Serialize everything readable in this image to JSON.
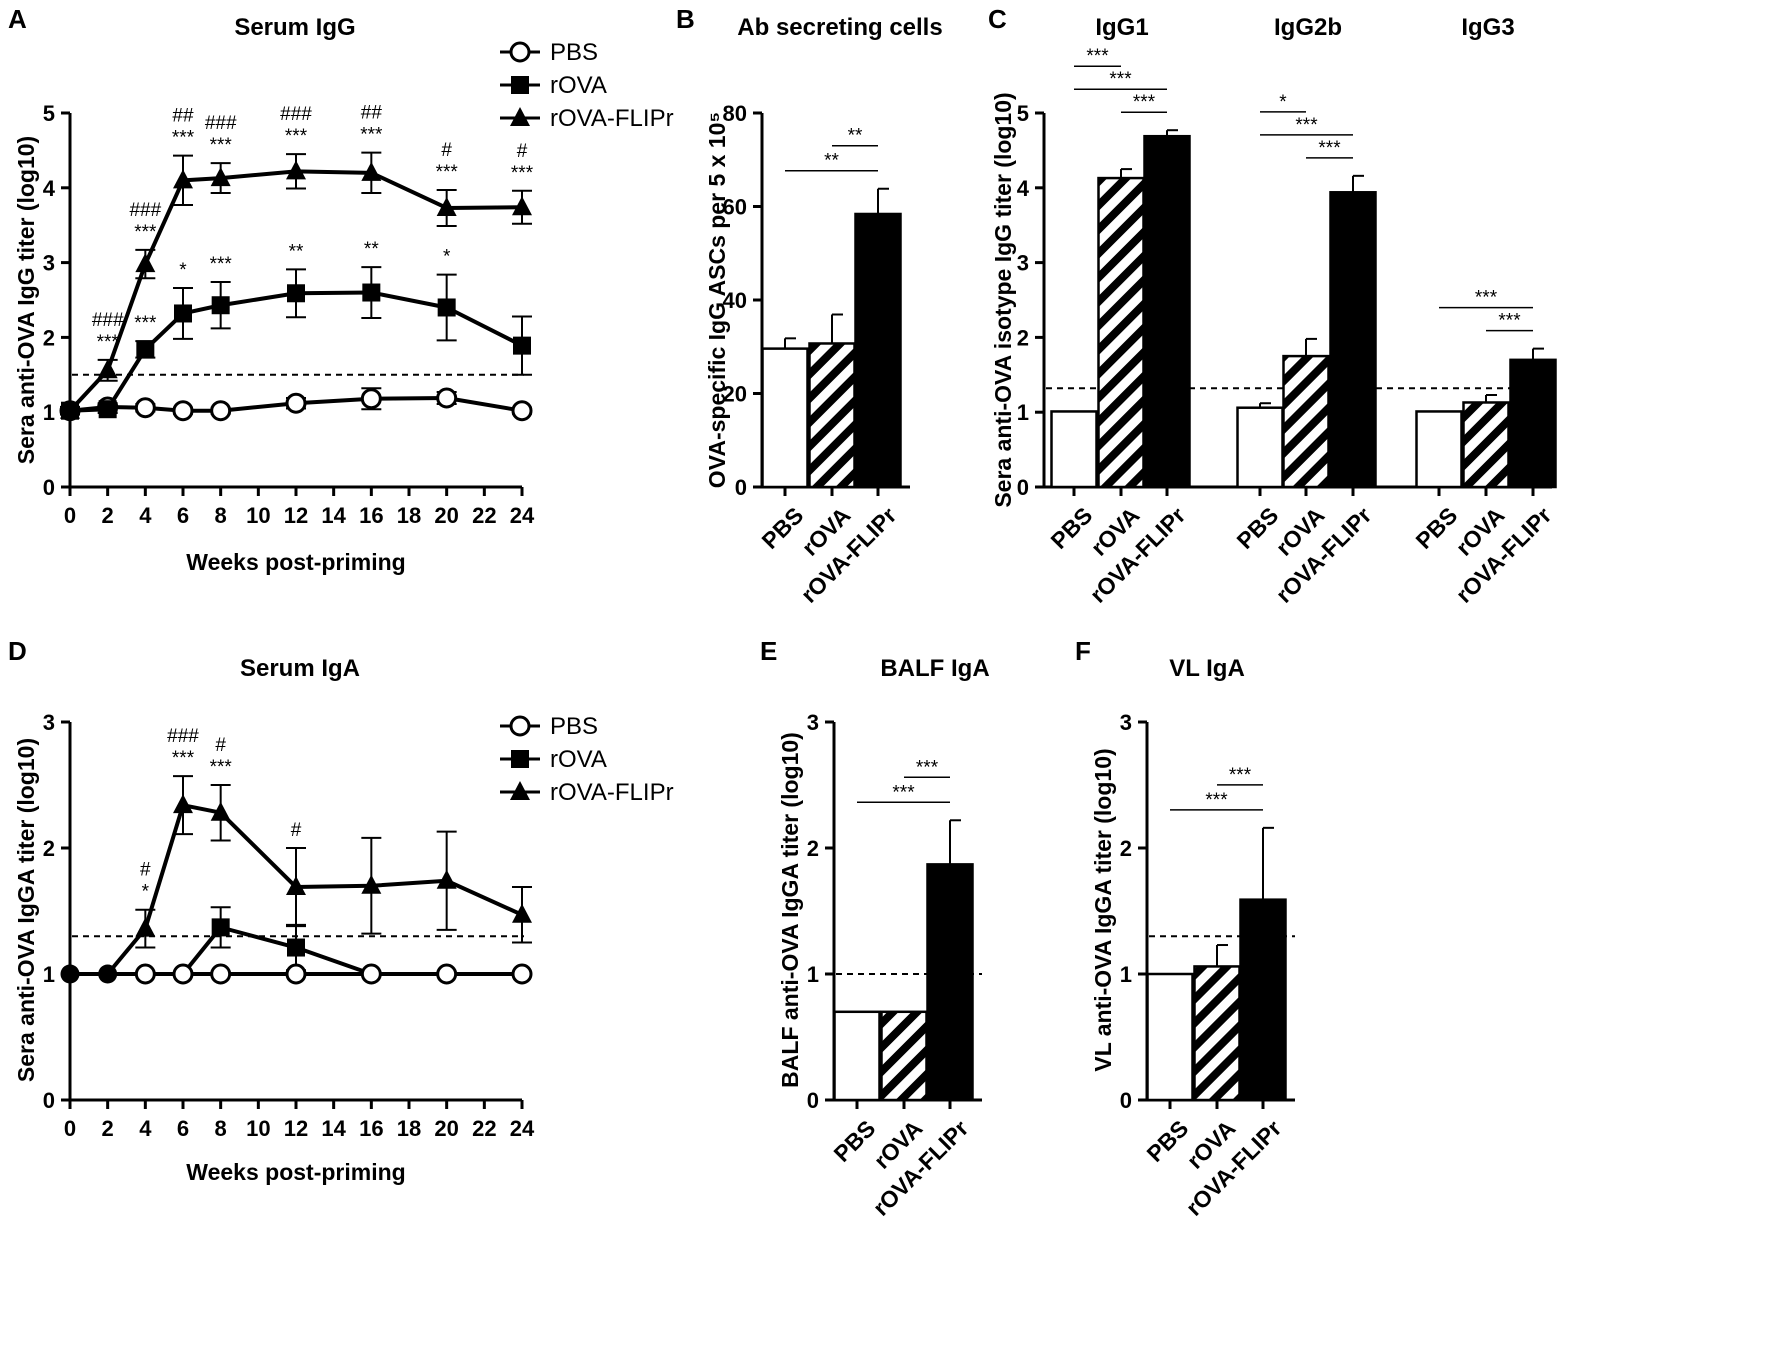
{
  "chart_data": [
    {
      "id": "A",
      "panel_label": "A",
      "type": "line",
      "title": "Serum IgG",
      "xlabel": "Weeks post-priming",
      "ylabel": "Sera anti-OVA IgG titer (log10)",
      "x_ticks": [
        "0",
        "2",
        "4",
        "6",
        "8",
        "10",
        "12",
        "14",
        "16",
        "18",
        "20",
        "22",
        "24"
      ],
      "y_ticks": [
        "0",
        "1",
        "2",
        "3",
        "4",
        "5"
      ],
      "xlim": [
        0,
        24
      ],
      "ylim": [
        0,
        5
      ],
      "threshold": 1.5,
      "legend": [
        "PBS",
        "rOVA",
        "rOVA-FLIPr"
      ],
      "series": [
        {
          "name": "PBS",
          "marker": "open-circle",
          "x": [
            0,
            2,
            4,
            6,
            8,
            12,
            16,
            20,
            24
          ],
          "y": [
            1.02,
            1.07,
            1.06,
            1.02,
            1.02,
            1.12,
            1.18,
            1.19,
            1.02
          ],
          "err": [
            0.05,
            0.05,
            0.05,
            0.04,
            0.04,
            0.07,
            0.14,
            0.08,
            0.04
          ]
        },
        {
          "name": "rOVA",
          "marker": "filled-square",
          "x": [
            0,
            2,
            4,
            6,
            8,
            12,
            16,
            20,
            24
          ],
          "y": [
            1.02,
            1.04,
            1.84,
            2.32,
            2.43,
            2.59,
            2.6,
            2.4,
            1.89
          ],
          "err": [
            0.04,
            0.05,
            0.11,
            0.34,
            0.31,
            0.32,
            0.34,
            0.44,
            0.39
          ]
        },
        {
          "name": "rOVA-FLIPr",
          "marker": "filled-triangle",
          "x": [
            0,
            2,
            4,
            6,
            8,
            12,
            16,
            20,
            24
          ],
          "y": [
            1.02,
            1.56,
            2.98,
            4.1,
            4.13,
            4.22,
            4.2,
            3.73,
            3.74
          ],
          "err": [
            0.04,
            0.14,
            0.19,
            0.33,
            0.2,
            0.23,
            0.27,
            0.24,
            0.22
          ]
        }
      ],
      "annotations": [
        {
          "x": 2,
          "lines": [
            "###",
            "***"
          ]
        },
        {
          "x": 4,
          "lines": [
            "###",
            "***"
          ]
        },
        {
          "x": 4,
          "lines": [
            "***"
          ]
        },
        {
          "x": 6,
          "lines": [
            "##",
            "***"
          ]
        },
        {
          "x": 6,
          "lines": [
            "*"
          ]
        },
        {
          "x": 8,
          "lines": [
            "###",
            "***"
          ]
        },
        {
          "x": 8,
          "lines": [
            "***"
          ]
        },
        {
          "x": 12,
          "lines": [
            "###",
            "***"
          ]
        },
        {
          "x": 12,
          "lines": [
            "**"
          ]
        },
        {
          "x": 16,
          "lines": [
            "##",
            "***"
          ]
        },
        {
          "x": 16,
          "lines": [
            "**"
          ]
        },
        {
          "x": 20,
          "lines": [
            "#",
            "***"
          ]
        },
        {
          "x": 20,
          "lines": [
            "*"
          ]
        },
        {
          "x": 24,
          "lines": [
            "#",
            "***"
          ]
        }
      ]
    },
    {
      "id": "B",
      "panel_label": "B",
      "type": "bar",
      "title": "Ab secreting cells",
      "ylabel": "OVA-specific IgG ASCs per 5 x 10⁵",
      "categories": [
        "PBS",
        "rOVA",
        "rOVA-FLIPr"
      ],
      "values": [
        29.6,
        30.7,
        58.4
      ],
      "err": [
        2.2,
        6.2,
        5.4
      ],
      "y_ticks": [
        "0",
        "20",
        "40",
        "60",
        "80"
      ],
      "ylim": [
        0,
        80
      ],
      "brackets": [
        {
          "from": 1,
          "to": 2,
          "label": "**"
        },
        {
          "from": 0,
          "to": 2,
          "label": "**"
        }
      ]
    },
    {
      "id": "C",
      "panel_label": "C",
      "type": "bar",
      "ylabel": "Sera anti-OVA isotype IgG titer (log10)",
      "y_ticks": [
        "0",
        "1",
        "2",
        "3",
        "4",
        "5"
      ],
      "ylim": [
        0,
        5
      ],
      "threshold": 1.32,
      "groups": [
        {
          "title": "IgG1",
          "categories": [
            "PBS",
            "rOVA",
            "rOVA-FLIPr"
          ],
          "values": [
            1.01,
            4.13,
            4.69
          ],
          "err": [
            0,
            0.12,
            0.08
          ],
          "brackets": [
            {
              "from": 1,
              "to": 2,
              "label": "***"
            },
            {
              "from": 0,
              "to": 2,
              "label": "***"
            },
            {
              "from": 0,
              "to": 1,
              "label": "***"
            }
          ]
        },
        {
          "title": "IgG2b",
          "categories": [
            "PBS",
            "rOVA",
            "rOVA-FLIPr"
          ],
          "values": [
            1.06,
            1.75,
            3.94
          ],
          "err": [
            0.06,
            0.23,
            0.22
          ],
          "brackets": [
            {
              "from": 1,
              "to": 2,
              "label": "***"
            },
            {
              "from": 0,
              "to": 2,
              "label": "***"
            },
            {
              "from": 0,
              "to": 1,
              "label": "*"
            }
          ]
        },
        {
          "title": "IgG3",
          "categories": [
            "PBS",
            "rOVA",
            "rOVA-FLIPr"
          ],
          "values": [
            1.01,
            1.13,
            1.7
          ],
          "err": [
            0,
            0.1,
            0.15
          ],
          "brackets": [
            {
              "from": 1,
              "to": 2,
              "label": "***"
            },
            {
              "from": 0,
              "to": 2,
              "label": "***"
            }
          ]
        }
      ]
    },
    {
      "id": "D",
      "panel_label": "D",
      "type": "line",
      "title": "Serum IgA",
      "xlabel": "Weeks post-priming",
      "ylabel": "Sera anti-OVA IgGA titer (log10)",
      "x_ticks": [
        "0",
        "2",
        "4",
        "6",
        "8",
        "10",
        "12",
        "14",
        "16",
        "18",
        "20",
        "22",
        "24"
      ],
      "y_ticks": [
        "0",
        "1",
        "2",
        "3"
      ],
      "xlim": [
        0,
        24
      ],
      "ylim": [
        0,
        3
      ],
      "threshold": 1.3,
      "legend": [
        "PBS",
        "rOVA",
        "rOVA-FLIPr"
      ],
      "series": [
        {
          "name": "PBS",
          "marker": "open-circle",
          "x": [
            0,
            2,
            4,
            6,
            8,
            12,
            16,
            20,
            24
          ],
          "y": [
            1,
            1,
            1,
            1,
            1,
            1,
            1,
            1,
            1
          ],
          "err": [
            0,
            0,
            0,
            0,
            0,
            0,
            0,
            0,
            0
          ]
        },
        {
          "name": "rOVA",
          "marker": "filled-square",
          "x": [
            0,
            2,
            4,
            6,
            8,
            12,
            16,
            20,
            24
          ],
          "y": [
            1,
            1,
            1,
            1,
            1.37,
            1.21,
            1,
            1,
            1
          ],
          "err": [
            0,
            0,
            0,
            0,
            0.16,
            0.18,
            0,
            0,
            0
          ]
        },
        {
          "name": "rOVA-FLIPr",
          "marker": "filled-triangle",
          "x": [
            0,
            2,
            4,
            6,
            8,
            12,
            16,
            20,
            24
          ],
          "y": [
            1,
            1,
            1.36,
            2.34,
            2.28,
            1.69,
            1.7,
            1.74,
            1.47
          ],
          "err": [
            0,
            0,
            0.15,
            0.23,
            0.22,
            0.31,
            0.38,
            0.39,
            0.22
          ]
        }
      ],
      "annotations": [
        {
          "x": 4,
          "lines": [
            "#",
            "*"
          ]
        },
        {
          "x": 6,
          "lines": [
            "###",
            "***"
          ]
        },
        {
          "x": 8,
          "lines": [
            "#",
            "***"
          ]
        },
        {
          "x": 12,
          "lines": [
            "#"
          ]
        }
      ]
    },
    {
      "id": "E",
      "panel_label": "E",
      "type": "bar",
      "title": "BALF IgA",
      "ylabel": "BALF anti-OVA IgGA titer (log10)",
      "categories": [
        "PBS",
        "rOVA",
        "rOVA-FLIPr"
      ],
      "values": [
        0.7,
        0.7,
        1.87
      ],
      "err": [
        0,
        0,
        0.35
      ],
      "y_ticks": [
        "0",
        "1",
        "2",
        "3"
      ],
      "ylim": [
        0,
        3
      ],
      "threshold": 1.0,
      "brackets": [
        {
          "from": 1,
          "to": 2,
          "label": "***"
        },
        {
          "from": 0,
          "to": 2,
          "label": "***"
        }
      ]
    },
    {
      "id": "F",
      "panel_label": "F",
      "type": "bar",
      "title": "VL IgA",
      "ylabel": "VL anti-OVA IgGA titer (log10)",
      "categories": [
        "PBS",
        "rOVA",
        "rOVA-FLIPr"
      ],
      "values": [
        1.0,
        1.06,
        1.59
      ],
      "err": [
        0,
        0.17,
        0.57
      ],
      "y_ticks": [
        "0",
        "1",
        "2",
        "3"
      ],
      "ylim": [
        0,
        3
      ],
      "threshold": 1.3,
      "brackets": [
        {
          "from": 1,
          "to": 2,
          "label": "***"
        },
        {
          "from": 0,
          "to": 2,
          "label": "***"
        }
      ]
    }
  ]
}
